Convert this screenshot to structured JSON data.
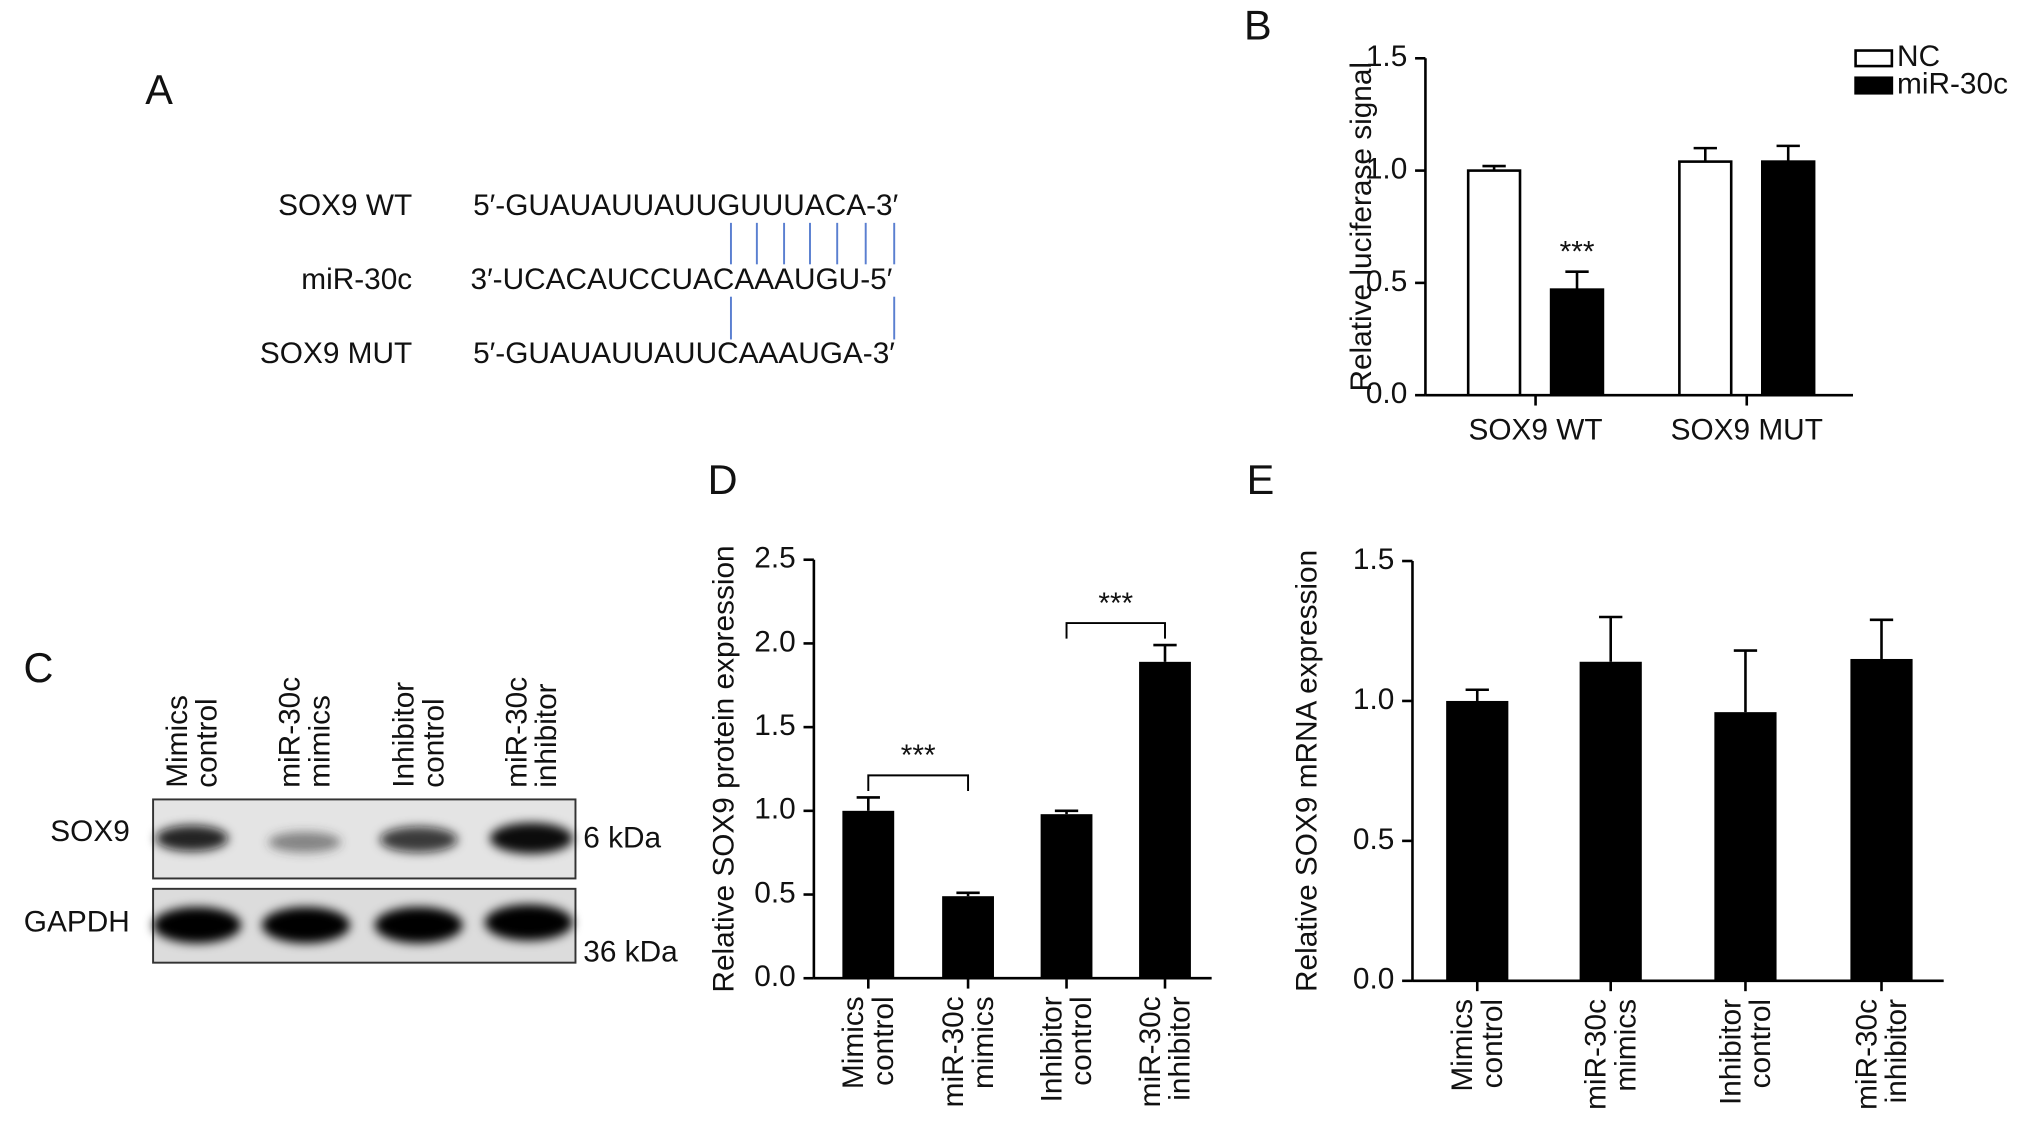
{
  "panel_a": {
    "label": "A",
    "rows": [
      {
        "name": "SOX9 WT",
        "sequence": "5′-GUAUAUUAUUGUUUACA-3′"
      },
      {
        "name": "miR-30c",
        "sequence": "3′-UCACAUCCUACAAAUGU-5′"
      },
      {
        "name": "SOX9 MUT",
        "sequence": "5′-GUAUAUUAUUCAAAUGA-3′"
      }
    ]
  },
  "panel_c": {
    "label": "C",
    "lanes": [
      [
        "Mimics",
        "control"
      ],
      [
        "miR-30c",
        "mimics"
      ],
      [
        "Inhibitor",
        "control"
      ],
      [
        "miR-30c",
        "inhibitor"
      ]
    ],
    "blots": [
      {
        "name": "SOX9",
        "size": "6 kDa"
      },
      {
        "name": "GAPDH",
        "size": "36 kDa"
      }
    ]
  },
  "chart_data": [
    {
      "type": "grouped-bar",
      "panel": "B",
      "y_label": "Relative luciferase signal",
      "categories": [
        "SOX9 WT",
        "SOX9 MUT"
      ],
      "series": [
        {
          "name": "NC",
          "color": "#ffffff",
          "values": [
            1.0,
            1.04
          ],
          "errors": [
            0.02,
            0.06
          ]
        },
        {
          "name": "miR-30c",
          "color": "#000000",
          "values": [
            0.47,
            1.04
          ],
          "errors": [
            0.08,
            0.07
          ]
        }
      ],
      "ylim": [
        0,
        1.5
      ],
      "yticks": [
        {
          "value": 0,
          "label": "0.0"
        },
        {
          "value": 0.5,
          "label": "0.5"
        },
        {
          "value": 1,
          "label": "1.0"
        },
        {
          "value": 1.5,
          "label": "1.5"
        }
      ],
      "legend": "top-right",
      "annotations": [
        "***"
      ]
    },
    {
      "type": "bar",
      "panel": "D",
      "y_label": "Relative SOX9 protein expression",
      "categories": [
        [
          "Mimics",
          "control"
        ],
        [
          "miR-30c",
          "mimics"
        ],
        [
          "Inhibitor",
          "control"
        ],
        [
          "miR-30c",
          "inhibitor"
        ]
      ],
      "values": [
        1.0,
        0.49,
        0.98,
        1.89
      ],
      "errors": [
        0.08,
        0.02,
        0.02,
        0.1
      ],
      "color": "#000000",
      "ylim": [
        0,
        2.5
      ],
      "yticks": [
        {
          "value": 0,
          "label": "0.0"
        },
        {
          "value": 0.5,
          "label": "0.5"
        },
        {
          "value": 1,
          "label": "1.0"
        },
        {
          "value": 1.5,
          "label": "1.5"
        },
        {
          "value": 2,
          "label": "2.0"
        },
        {
          "value": 2.5,
          "label": "2.5"
        }
      ],
      "annotations": [
        "***",
        "***"
      ]
    },
    {
      "type": "bar",
      "panel": "E",
      "y_label": "Relative SOX9 mRNA expression",
      "categories": [
        [
          "Mimics",
          "control"
        ],
        [
          "miR-30c",
          "mimics"
        ],
        [
          "Inhibitor",
          "control"
        ],
        [
          "miR-30c",
          "inhibitor"
        ]
      ],
      "values": [
        1.0,
        1.14,
        0.96,
        1.15
      ],
      "errors": [
        0.04,
        0.16,
        0.22,
        0.14
      ],
      "color": "#000000",
      "ylim": [
        0,
        1.5
      ],
      "yticks": [
        {
          "value": 0,
          "label": "0.0"
        },
        {
          "value": 0.5,
          "label": "0.5"
        },
        {
          "value": 1,
          "label": "1.0"
        },
        {
          "value": 1.5,
          "label": "1.5"
        }
      ],
      "annotations": []
    }
  ]
}
